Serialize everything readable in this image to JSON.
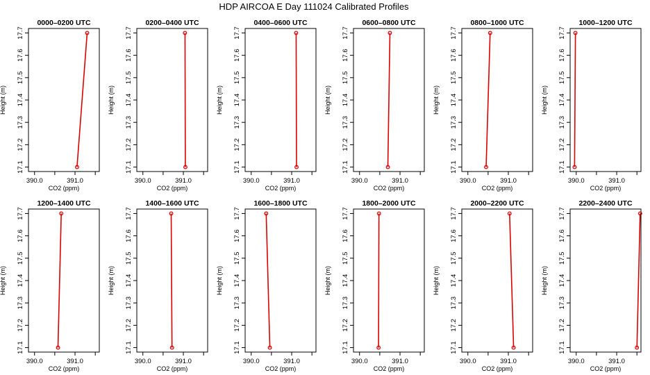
{
  "figure": {
    "title": "HDP AIRCOA E  Day 111024  Calibrated Profiles"
  },
  "colors": {
    "series": "#dd0000",
    "frame": "#000000"
  },
  "chart_data": [
    {
      "type": "line",
      "title": "0000–0200 UTC",
      "xlabel": "CO2 (ppm)",
      "ylabel": "Height (m)",
      "xlim": [
        389.85,
        391.6
      ],
      "ylim": [
        17.08,
        17.72
      ],
      "xticks": [
        "390.0",
        "391.0"
      ],
      "yticks": [
        "17.1",
        "17.2",
        "17.3",
        "17.4",
        "17.5",
        "17.6",
        "17.7"
      ],
      "series": [
        {
          "x": [
            391.05,
            391.3
          ],
          "y": [
            17.1,
            17.7
          ]
        }
      ]
    },
    {
      "type": "line",
      "title": "0200–0400 UTC",
      "xlabel": "CO2 (ppm)",
      "ylabel": "Height (m)",
      "xlim": [
        389.85,
        391.6
      ],
      "ylim": [
        17.08,
        17.72
      ],
      "xticks": [
        "390.0",
        "391.0"
      ],
      "yticks": [
        "17.1",
        "17.2",
        "17.3",
        "17.4",
        "17.5",
        "17.6",
        "17.7"
      ],
      "series": [
        {
          "x": [
            391.05,
            391.04
          ],
          "y": [
            17.1,
            17.7
          ]
        }
      ]
    },
    {
      "type": "line",
      "title": "0400–0600 UTC",
      "xlabel": "CO2 (ppm)",
      "ylabel": "Height (m)",
      "xlim": [
        389.85,
        391.6
      ],
      "ylim": [
        17.08,
        17.72
      ],
      "xticks": [
        "390.0",
        "391.0"
      ],
      "yticks": [
        "17.1",
        "17.2",
        "17.3",
        "17.4",
        "17.5",
        "17.6",
        "17.7"
      ],
      "series": [
        {
          "x": [
            391.12,
            391.11
          ],
          "y": [
            17.1,
            17.7
          ]
        }
      ]
    },
    {
      "type": "line",
      "title": "0600–0800 UTC",
      "xlabel": "CO2 (ppm)",
      "ylabel": "Height (m)",
      "xlim": [
        389.85,
        391.6
      ],
      "ylim": [
        17.08,
        17.72
      ],
      "xticks": [
        "390.0",
        "391.0"
      ],
      "yticks": [
        "17.1",
        "17.2",
        "17.3",
        "17.4",
        "17.5",
        "17.6",
        "17.7"
      ],
      "series": [
        {
          "x": [
            390.7,
            390.75
          ],
          "y": [
            17.1,
            17.7
          ]
        }
      ]
    },
    {
      "type": "line",
      "title": "0800–1000 UTC",
      "xlabel": "CO2 (ppm)",
      "ylabel": "Height (m)",
      "xlim": [
        389.85,
        391.6
      ],
      "ylim": [
        17.08,
        17.72
      ],
      "xticks": [
        "390.0",
        "391.0"
      ],
      "yticks": [
        "17.1",
        "17.2",
        "17.3",
        "17.4",
        "17.5",
        "17.6",
        "17.7"
      ],
      "series": [
        {
          "x": [
            390.45,
            390.55
          ],
          "y": [
            17.1,
            17.7
          ]
        }
      ]
    },
    {
      "type": "line",
      "title": "1000–1200 UTC",
      "xlabel": "CO2 (ppm)",
      "ylabel": "Height (m)",
      "xlim": [
        389.85,
        391.6
      ],
      "ylim": [
        17.08,
        17.72
      ],
      "xticks": [
        "390.0",
        "391.0"
      ],
      "yticks": [
        "17.1",
        "17.2",
        "17.3",
        "17.4",
        "17.5",
        "17.6",
        "17.7"
      ],
      "series": [
        {
          "x": [
            389.96,
            389.98
          ],
          "y": [
            17.1,
            17.7
          ]
        }
      ]
    },
    {
      "type": "line",
      "title": "1200–1400 UTC",
      "xlabel": "CO2 (ppm)",
      "ylabel": "Height (m)",
      "xlim": [
        389.85,
        391.6
      ],
      "ylim": [
        17.08,
        17.72
      ],
      "xticks": [
        "390.0",
        "391.0"
      ],
      "yticks": [
        "17.1",
        "17.2",
        "17.3",
        "17.4",
        "17.5",
        "17.6",
        "17.7"
      ],
      "series": [
        {
          "x": [
            390.58,
            390.66
          ],
          "y": [
            17.1,
            17.7
          ]
        }
      ]
    },
    {
      "type": "line",
      "title": "1400–1600 UTC",
      "xlabel": "CO2 (ppm)",
      "ylabel": "Height (m)",
      "xlim": [
        389.85,
        391.6
      ],
      "ylim": [
        17.08,
        17.72
      ],
      "xticks": [
        "390.0",
        "391.0"
      ],
      "yticks": [
        "17.1",
        "17.2",
        "17.3",
        "17.4",
        "17.5",
        "17.6",
        "17.7"
      ],
      "series": [
        {
          "x": [
            390.72,
            390.7
          ],
          "y": [
            17.1,
            17.7
          ]
        }
      ]
    },
    {
      "type": "line",
      "title": "1600–1800 UTC",
      "xlabel": "CO2 (ppm)",
      "ylabel": "Height (m)",
      "xlim": [
        389.85,
        391.6
      ],
      "ylim": [
        17.08,
        17.72
      ],
      "xticks": [
        "390.0",
        "391.0"
      ],
      "yticks": [
        "17.1",
        "17.2",
        "17.3",
        "17.4",
        "17.5",
        "17.6",
        "17.7"
      ],
      "series": [
        {
          "x": [
            390.46,
            390.37
          ],
          "y": [
            17.1,
            17.7
          ]
        }
      ]
    },
    {
      "type": "line",
      "title": "1800–2000 UTC",
      "xlabel": "CO2 (ppm)",
      "ylabel": "Height (m)",
      "xlim": [
        389.85,
        391.6
      ],
      "ylim": [
        17.08,
        17.72
      ],
      "xticks": [
        "390.0",
        "391.0"
      ],
      "yticks": [
        "17.1",
        "17.2",
        "17.3",
        "17.4",
        "17.5",
        "17.6",
        "17.7"
      ],
      "series": [
        {
          "x": [
            390.47,
            390.48
          ],
          "y": [
            17.1,
            17.7
          ]
        }
      ]
    },
    {
      "type": "line",
      "title": "2000–2200 UTC",
      "xlabel": "CO2 (ppm)",
      "ylabel": "Height (m)",
      "xlim": [
        389.85,
        391.6
      ],
      "ylim": [
        17.08,
        17.72
      ],
      "xticks": [
        "390.0",
        "391.0"
      ],
      "yticks": [
        "17.1",
        "17.2",
        "17.3",
        "17.4",
        "17.5",
        "17.6",
        "17.7"
      ],
      "series": [
        {
          "x": [
            391.13,
            391.03
          ],
          "y": [
            17.1,
            17.7
          ]
        }
      ]
    },
    {
      "type": "line",
      "title": "2200–2400 UTC",
      "xlabel": "CO2 (ppm)",
      "ylabel": "Height (m)",
      "xlim": [
        389.85,
        391.6
      ],
      "ylim": [
        17.08,
        17.72
      ],
      "xticks": [
        "390.0",
        "391.0"
      ],
      "yticks": [
        "17.1",
        "17.2",
        "17.3",
        "17.4",
        "17.5",
        "17.6",
        "17.7"
      ],
      "series": [
        {
          "x": [
            391.5,
            391.58
          ],
          "y": [
            17.1,
            17.7
          ]
        }
      ]
    }
  ]
}
